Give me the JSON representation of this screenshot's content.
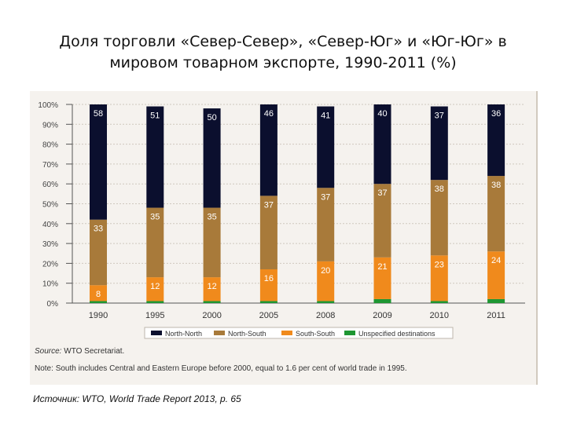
{
  "slide": {
    "title_line1": "Доля торговли «Север-Север», «Север-Юг» и «Юг-Юг» в",
    "title_line2": "мировом товарном экспорте, 1990-2011 (%)",
    "source_label": "Source:",
    "source_text": "WTO Secretariat.",
    "note_label": "Note:",
    "note_text": "South includes Central and Eastern Europe before 2000, equal to 1.6 per cent of world trade in 1995.",
    "citation": "Источник: WTO, World Trade Report 2013, p. 65"
  },
  "chart_data": {
    "type": "bar",
    "stacked": true,
    "unit": "%",
    "ylim": [
      0,
      100
    ],
    "yticks": [
      "0%",
      "10%",
      "20%",
      "30%",
      "40%",
      "50%",
      "60%",
      "70%",
      "80%",
      "90%",
      "100%"
    ],
    "categories": [
      "1990",
      "1995",
      "2000",
      "2005",
      "2008",
      "2009",
      "2010",
      "2011"
    ],
    "series": [
      {
        "name": "Unspecified destinations",
        "color": "#1e9632",
        "values": [
          1,
          1,
          1,
          1,
          1,
          2,
          1,
          2
        ],
        "labels": [
          "",
          "",
          "",
          "",
          "",
          "",
          "",
          ""
        ]
      },
      {
        "name": "South-South",
        "color": "#f08a1c",
        "values": [
          8,
          12,
          12,
          16,
          20,
          21,
          23,
          24
        ],
        "labels": [
          "8",
          "12",
          "12",
          "16",
          "20",
          "21",
          "23",
          "24"
        ]
      },
      {
        "name": "North-South",
        "color": "#a87a3a",
        "values": [
          33,
          35,
          35,
          37,
          37,
          37,
          38,
          38
        ],
        "labels": [
          "33",
          "35",
          "35",
          "37",
          "37",
          "37",
          "38",
          "38"
        ]
      },
      {
        "name": "North-North",
        "color": "#0b0f2e",
        "values": [
          58,
          51,
          50,
          46,
          41,
          40,
          37,
          36
        ],
        "labels": [
          "58",
          "51",
          "50",
          "46",
          "41",
          "40",
          "37",
          "36"
        ]
      }
    ],
    "legend": [
      {
        "name": "North-North",
        "color": "#0b0f2e"
      },
      {
        "name": "North-South",
        "color": "#a87a3a"
      },
      {
        "name": "South-South",
        "color": "#f08a1c"
      },
      {
        "name": "Unspecified destinations",
        "color": "#1e9632"
      }
    ],
    "legend_position": "bottom",
    "grid": true
  }
}
